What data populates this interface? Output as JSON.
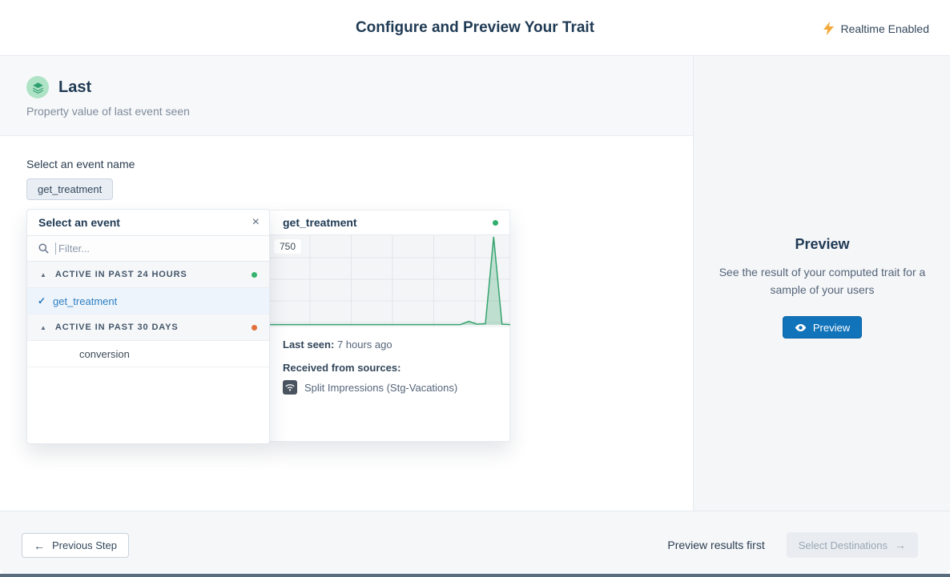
{
  "header": {
    "title": "Configure and Preview Your Trait",
    "realtime_label": "Realtime Enabled"
  },
  "trait": {
    "name": "Last",
    "description": "Property value of last event seen"
  },
  "event_select": {
    "label": "Select an event name",
    "selected_chip": "get_treatment"
  },
  "dropdown": {
    "title": "Select an event",
    "close_icon": "×",
    "filter_placeholder": "Filter...",
    "groups": [
      {
        "label": "ACTIVE IN PAST 24 HOURS",
        "dot_color": "#36b36e",
        "items": [
          {
            "label": "get_treatment",
            "selected": true
          }
        ]
      },
      {
        "label": "ACTIVE IN PAST 30 DAYS",
        "dot_color": "#e2703a",
        "items": [
          {
            "label": "conversion",
            "selected": false
          }
        ]
      }
    ]
  },
  "event_detail": {
    "title": "get_treatment",
    "status_dot_color": "#2fae6e",
    "last_seen_label": "Last seen:",
    "last_seen_value": "7 hours ago",
    "sources_label": "Received from sources:",
    "sources": [
      "Split Impressions (Stg-Vacations)"
    ]
  },
  "chart_data": {
    "type": "area",
    "title": "get_treatment event volume over time",
    "x": [
      0,
      1,
      2,
      3,
      4,
      5,
      6,
      7,
      8,
      9,
      10,
      11,
      12,
      13,
      14,
      15,
      16,
      17,
      18,
      19,
      20,
      21,
      22,
      23,
      24,
      25,
      26,
      27,
      28,
      29
    ],
    "values": [
      3,
      3,
      3,
      3,
      3,
      3,
      3,
      3,
      3,
      3,
      3,
      3,
      3,
      3,
      3,
      3,
      3,
      3,
      3,
      3,
      3,
      3,
      3,
      3,
      30,
      6,
      10,
      750,
      6,
      3
    ],
    "ylim": [
      0,
      750
    ],
    "y_tick_labels": [
      "750"
    ],
    "grid": true,
    "legend": "none",
    "line_color": "#36a46f",
    "fill_color": "rgba(54,164,111,0.28)"
  },
  "preview_panel": {
    "title": "Preview",
    "description": "See the result of your computed trait for a sample of your users",
    "button_label": "Preview"
  },
  "footer": {
    "previous_label": "Previous Step",
    "hint": "Preview results first",
    "next_label": "Select Destinations"
  }
}
